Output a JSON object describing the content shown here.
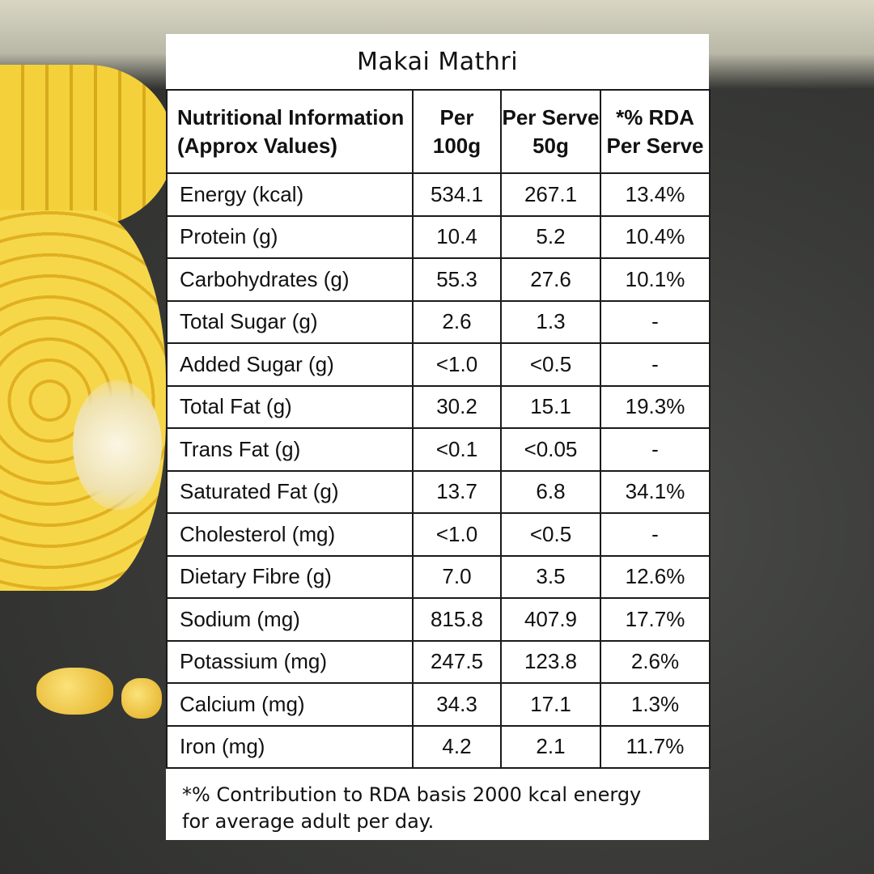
{
  "title": "Makai Mathri",
  "headers": {
    "nutrient": [
      "Nutritional Information",
      "(Approx Values)"
    ],
    "per100g": [
      "Per",
      "100g"
    ],
    "perServe": [
      "Per Serve",
      "50g"
    ],
    "rda": [
      "*% RDA",
      "Per Serve"
    ]
  },
  "rows": [
    {
      "name": "Energy (kcal)",
      "per100g": "534.1",
      "perServe": "267.1",
      "rda": "13.4%"
    },
    {
      "name": "Protein (g)",
      "per100g": "10.4",
      "perServe": "5.2",
      "rda": "10.4%"
    },
    {
      "name": "Carbohydrates (g)",
      "per100g": "55.3",
      "perServe": "27.6",
      "rda": "10.1%"
    },
    {
      "name": "Total Sugar (g)",
      "per100g": "2.6",
      "perServe": "1.3",
      "rda": "-"
    },
    {
      "name": "Added Sugar (g)",
      "per100g": "<1.0",
      "perServe": "<0.5",
      "rda": "-"
    },
    {
      "name": "Total Fat (g)",
      "per100g": "30.2",
      "perServe": "15.1",
      "rda": "19.3%"
    },
    {
      "name": "Trans Fat (g)",
      "per100g": "<0.1",
      "perServe": "<0.05",
      "rda": "-"
    },
    {
      "name": "Saturated Fat (g)",
      "per100g": "13.7",
      "perServe": "6.8",
      "rda": "34.1%"
    },
    {
      "name": "Cholesterol (mg)",
      "per100g": "<1.0",
      "perServe": "<0.5",
      "rda": "-"
    },
    {
      "name": "Dietary Fibre (g)",
      "per100g": "7.0",
      "perServe": "3.5",
      "rda": "12.6%"
    },
    {
      "name": "Sodium (mg)",
      "per100g": "815.8",
      "perServe": "407.9",
      "rda": "17.7%"
    },
    {
      "name": "Potassium (mg)",
      "per100g": "247.5",
      "perServe": "123.8",
      "rda": "2.6%"
    },
    {
      "name": "Calcium (mg)",
      "per100g": "34.3",
      "perServe": "17.1",
      "rda": "1.3%"
    },
    {
      "name": "Iron (mg)",
      "per100g": "4.2",
      "perServe": "2.1",
      "rda": "11.7%"
    }
  ],
  "footer": [
    "*% Contribution to RDA basis 2000 kcal energy",
    "for average adult per day."
  ]
}
